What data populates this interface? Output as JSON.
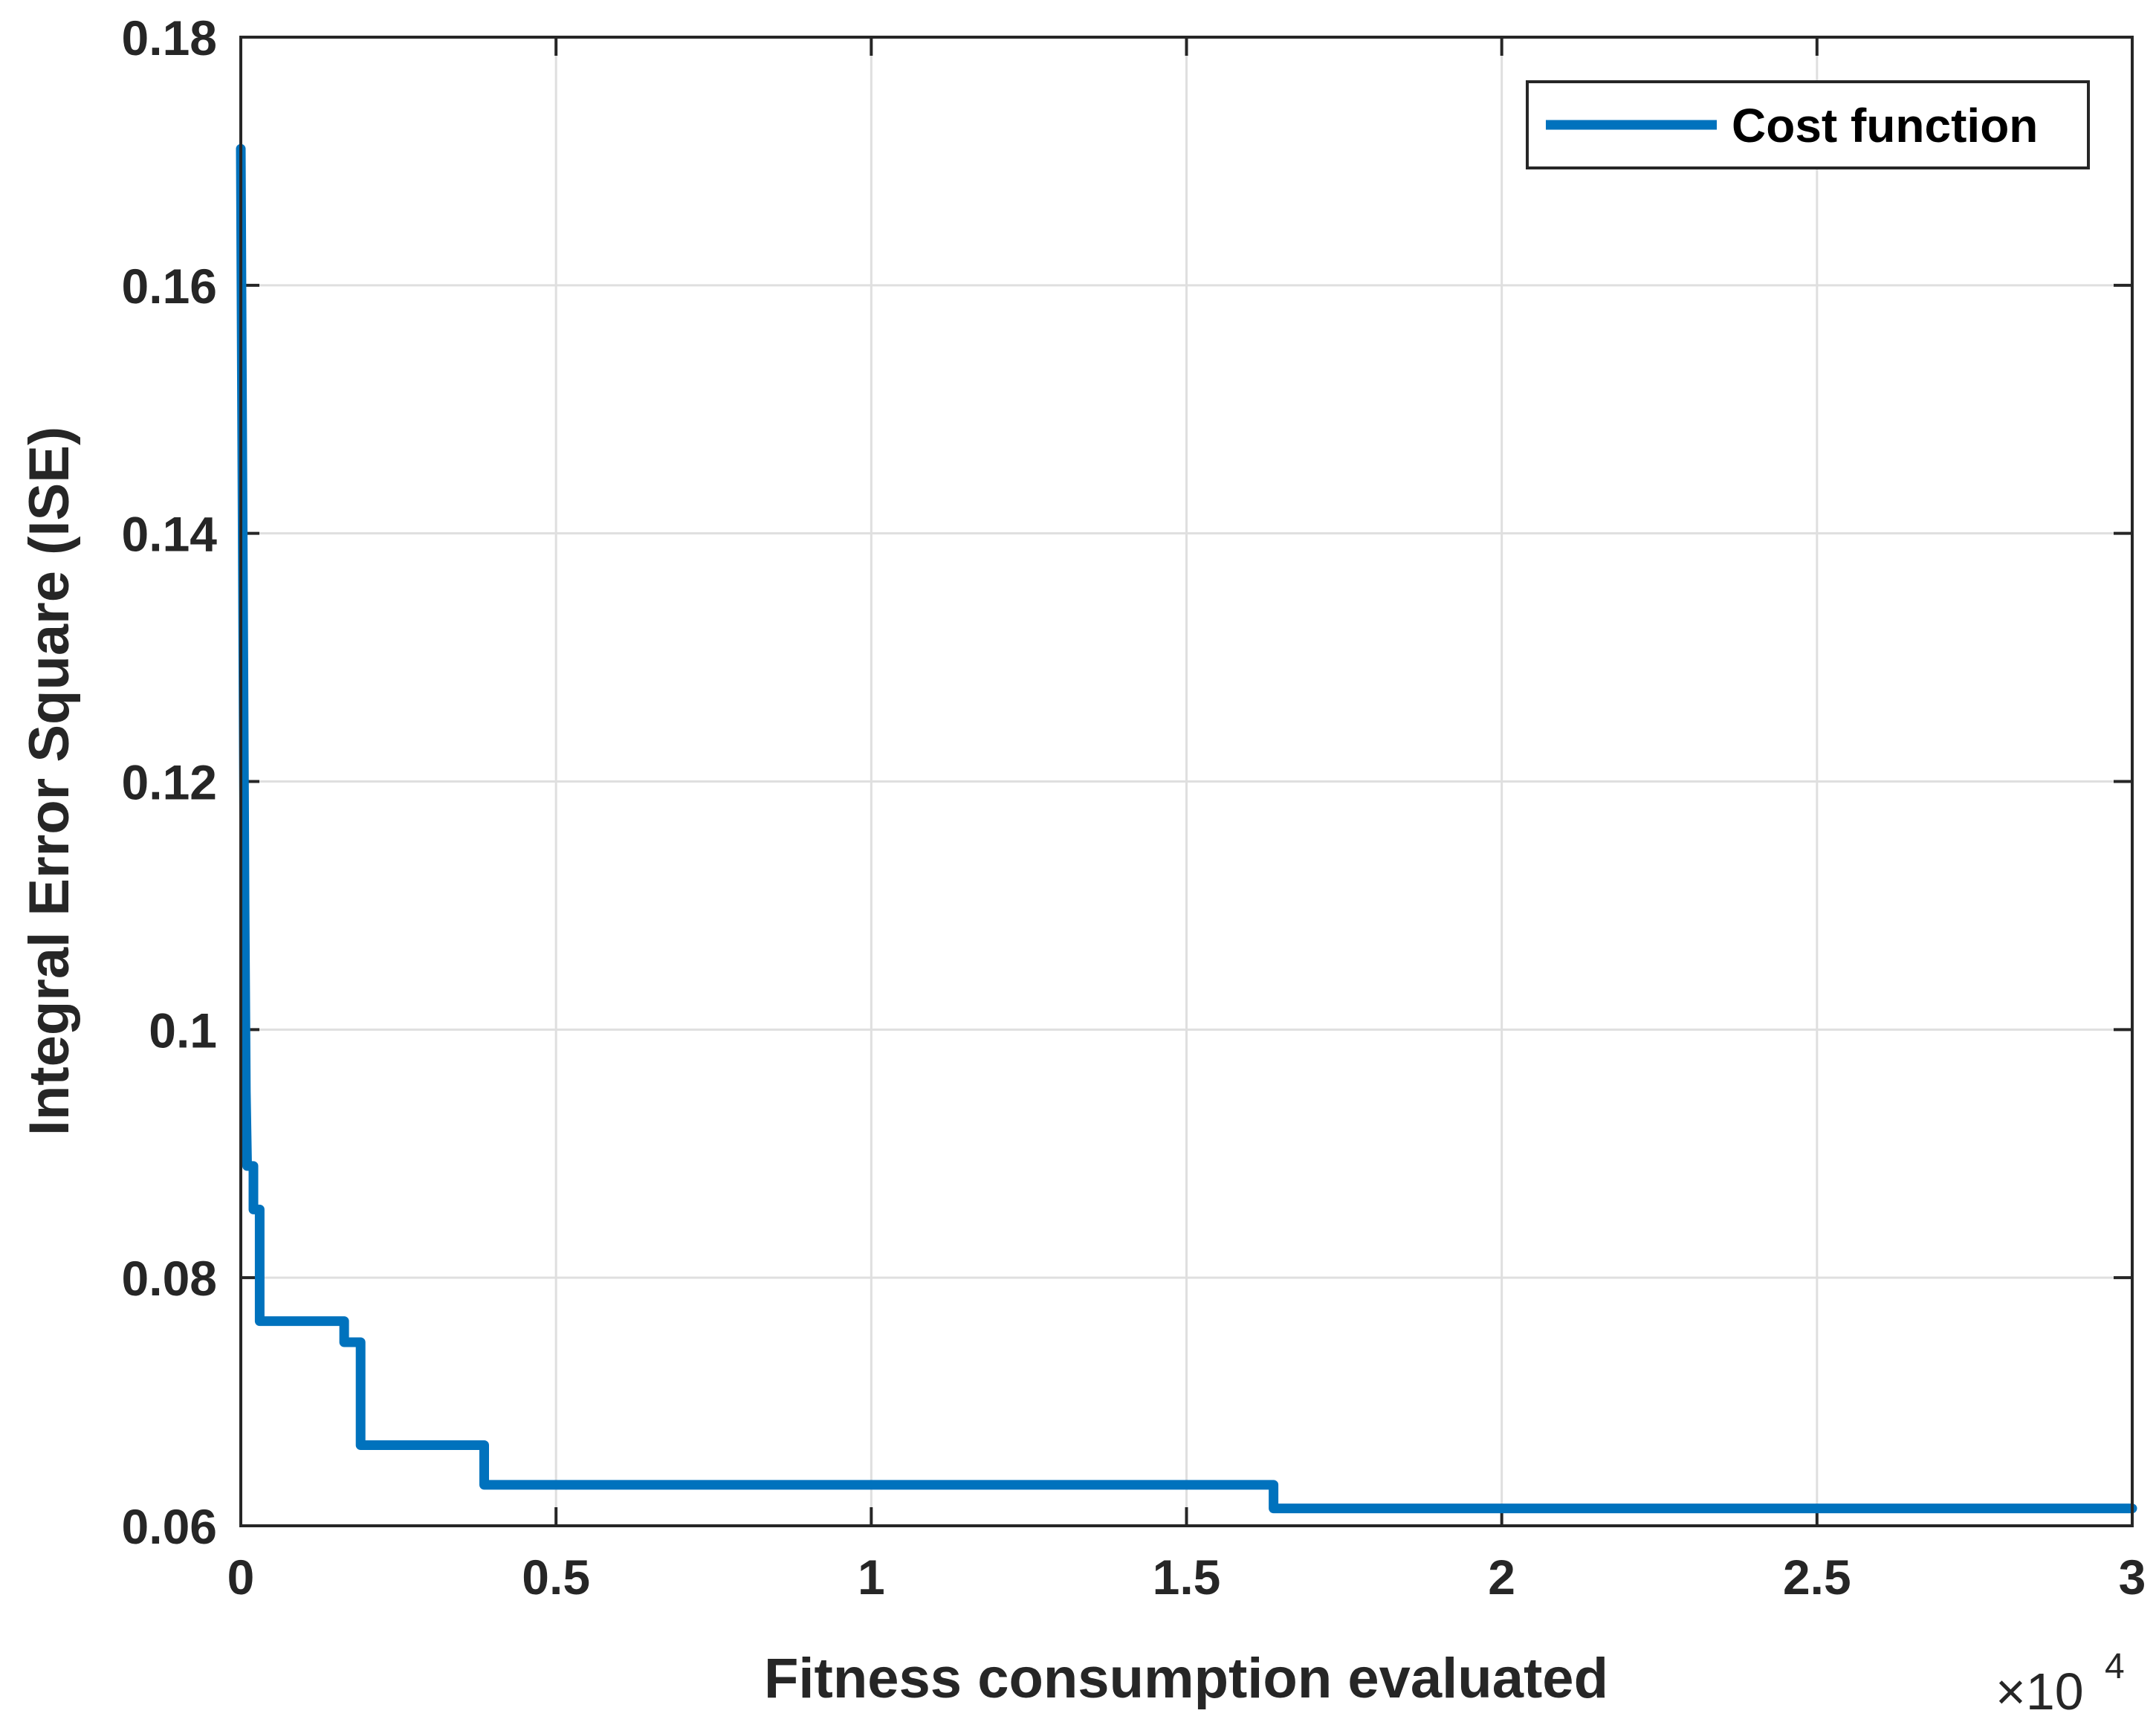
{
  "chart_data": {
    "type": "line",
    "xlabel": "Fitness consumption evaluated",
    "ylabel": "Integral Error Square (ISE)",
    "x_multiplier": {
      "base": "×10",
      "exponent": "4"
    },
    "xlim": [
      0,
      3
    ],
    "ylim": [
      0.06,
      0.18
    ],
    "xticks": [
      "0",
      "0.5",
      "1",
      "1.5",
      "2",
      "2.5",
      "3"
    ],
    "yticks": [
      "0.06",
      "0.08",
      "0.1",
      "0.12",
      "0.14",
      "0.16",
      "0.18"
    ],
    "grid": true,
    "legend_position": "top-right",
    "series": [
      {
        "name": "Cost function",
        "color": "#0072BD",
        "x": [
          0,
          0.002,
          0.004,
          0.006,
          0.008,
          0.01,
          0.01,
          0.02,
          0.02,
          0.03,
          0.03,
          0.164,
          0.164,
          0.176,
          0.176,
          0.19,
          0.19,
          0.386,
          0.386,
          1.638,
          1.638,
          3.0
        ],
        "y": [
          0.171,
          0.15,
          0.13,
          0.11,
          0.095,
          0.089,
          0.089,
          0.089,
          0.0855,
          0.0855,
          0.0765,
          0.0765,
          0.0748,
          0.0748,
          0.0748,
          0.0748,
          0.0665,
          0.0665,
          0.0633,
          0.0633,
          0.0614,
          0.0614
        ]
      }
    ]
  }
}
